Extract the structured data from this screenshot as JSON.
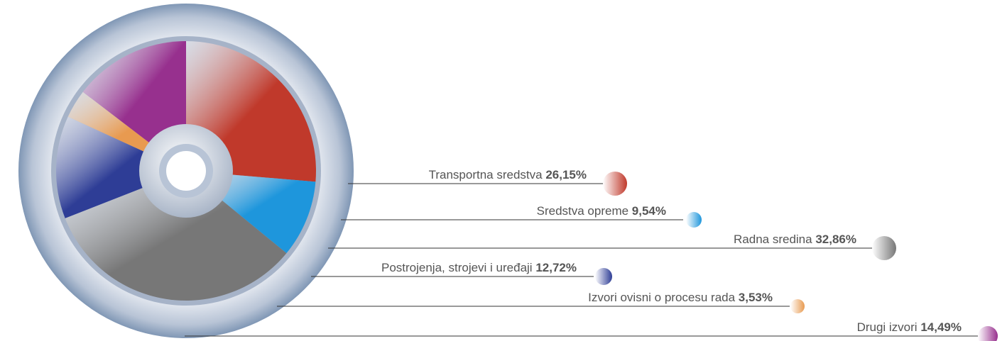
{
  "chart_data": {
    "type": "pie",
    "categories": [
      "Transportna sredstva",
      "Sredstva opreme",
      "Radna sredina",
      "Postrojenja, strojevi i uređaji",
      "Izvori ovisni o procesu rada",
      "Drugi izvori"
    ],
    "values": [
      26.15,
      9.54,
      32.86,
      12.72,
      3.53,
      14.49
    ],
    "value_labels": [
      "26,15%",
      "9,54%",
      "32,86%",
      "12,72%",
      "3,53%",
      "14,49%"
    ],
    "colors": [
      "#c0392b",
      "#1e96dc",
      "#777777",
      "#2e3d96",
      "#e89a50",
      "#97308e"
    ]
  }
}
